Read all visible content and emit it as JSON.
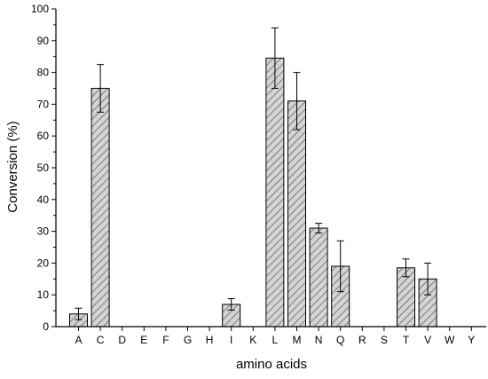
{
  "chart_data": {
    "type": "bar",
    "xlabel": "amino acids",
    "ylabel": "Conversion (%)",
    "ylim": [
      0,
      100
    ],
    "yticks": [
      0,
      10,
      20,
      30,
      40,
      50,
      60,
      70,
      80,
      90,
      100
    ],
    "grid": false,
    "bar_fill": "hatched",
    "colors": {
      "bar_fill": "#d4d4d4",
      "hatch": "#555555",
      "axis": "#000000"
    },
    "categories": [
      "A",
      "C",
      "D",
      "E",
      "F",
      "G",
      "H",
      "I",
      "K",
      "L",
      "M",
      "N",
      "Q",
      "R",
      "S",
      "T",
      "V",
      "W",
      "Y"
    ],
    "values": [
      4,
      75,
      null,
      null,
      null,
      null,
      null,
      7,
      null,
      84.5,
      71,
      31,
      19,
      null,
      null,
      18.5,
      15,
      null,
      null
    ],
    "error": [
      1.8,
      7.5,
      null,
      null,
      null,
      null,
      null,
      1.8,
      null,
      9.5,
      9,
      1.5,
      8,
      null,
      null,
      2.8,
      5,
      null,
      null
    ]
  }
}
